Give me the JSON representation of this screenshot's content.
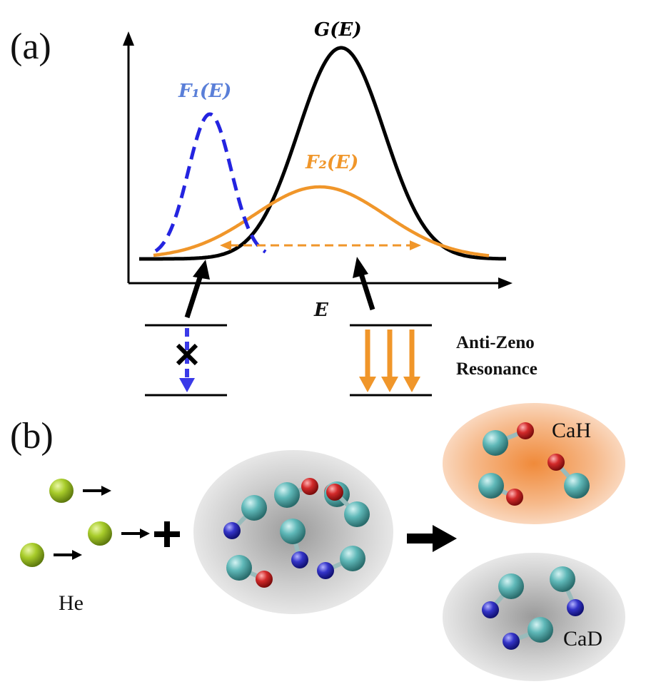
{
  "panel_a": {
    "label": "(a)",
    "x_axis_label": "E",
    "curves": [
      {
        "label": "G(E)",
        "color": "#000000",
        "style": "solid"
      },
      {
        "label": "F₁(E)",
        "color": "#2424e0",
        "style": "dashed"
      },
      {
        "label": "F₂(E)",
        "color": "#f0962a",
        "style": "solid"
      }
    ],
    "transition_label": [
      "Anti-Zeno",
      "Resonance"
    ],
    "colors": {
      "blue": "#3a3ae8",
      "orange": "#f0962a",
      "black": "#000000"
    }
  },
  "panel_b": {
    "label": "(b)",
    "projectile_label": "He",
    "products": [
      "CaH",
      "CaD"
    ],
    "colors": {
      "he": "#a8cc2a",
      "ca": "#5fb8b8",
      "h": "#d22a2a",
      "d": "#3434c8"
    }
  }
}
